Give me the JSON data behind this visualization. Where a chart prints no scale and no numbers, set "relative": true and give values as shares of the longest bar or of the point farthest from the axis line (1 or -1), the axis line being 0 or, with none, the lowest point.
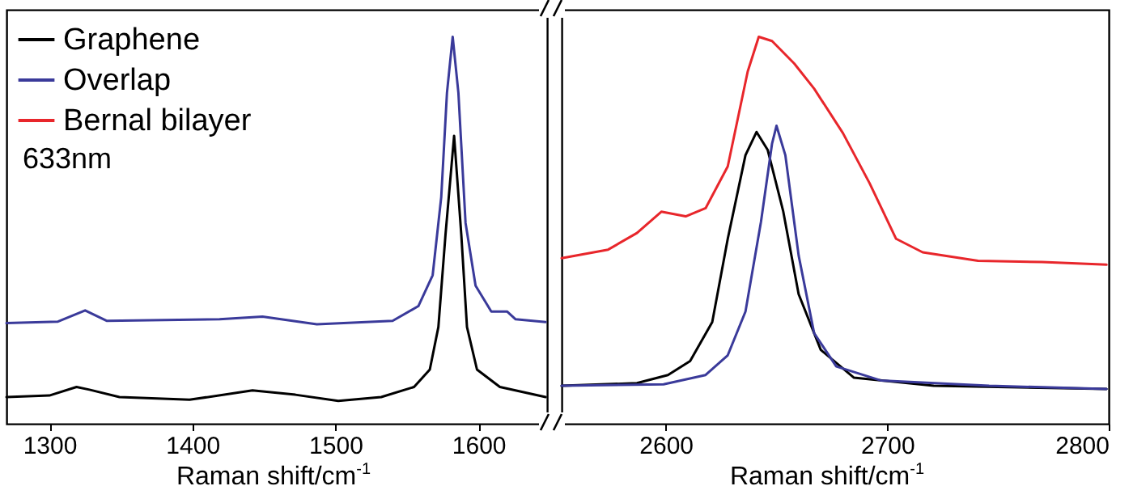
{
  "chart_data": [
    {
      "type": "line",
      "relative": true,
      "xlabel": "Raman shift/cm$^{-1}$",
      "xlim": [
        1270,
        1648
      ],
      "xticks": [
        1300,
        1400,
        1500,
        1600
      ],
      "legend": "top left",
      "annotations": [
        "633nm"
      ],
      "series": [
        {
          "name": "Graphene",
          "color": "#000000",
          "x": [
            1270,
            1300,
            1319,
            1328,
            1349,
            1398,
            1442,
            1472,
            1502,
            1532,
            1555,
            1566,
            1572,
            1577,
            1583,
            1588,
            1592,
            1599,
            1615,
            1647
          ],
          "values": [
            0.069,
            0.073,
            0.095,
            0.088,
            0.069,
            0.062,
            0.086,
            0.075,
            0.059,
            0.069,
            0.095,
            0.14,
            0.25,
            0.49,
            0.744,
            0.49,
            0.25,
            0.14,
            0.095,
            0.069
          ]
        },
        {
          "name": "Overlap",
          "color": "#3a3a9a",
          "x": [
            1270,
            1306,
            1325,
            1340,
            1419,
            1449,
            1487,
            1540,
            1558,
            1568,
            1574,
            1578,
            1582,
            1586,
            1591,
            1598,
            1609,
            1620,
            1626,
            1647
          ],
          "values": [
            0.26,
            0.264,
            0.293,
            0.266,
            0.27,
            0.277,
            0.257,
            0.266,
            0.304,
            0.384,
            0.586,
            0.855,
            1.0,
            0.855,
            0.519,
            0.357,
            0.29,
            0.29,
            0.27,
            0.263
          ]
        }
      ]
    },
    {
      "type": "line",
      "relative": true,
      "xlabel": "Raman shift/cm$^{-1}$",
      "xlim": [
        2553,
        2800
      ],
      "xticks": [
        2600,
        2700,
        2800
      ],
      "series": [
        {
          "name": "Graphene",
          "color": "#000000",
          "x": [
            2553,
            2587,
            2601,
            2611,
            2621,
            2628,
            2636,
            2641,
            2646,
            2653,
            2660,
            2670,
            2685,
            2721,
            2799
          ],
          "values": [
            0.098,
            0.105,
            0.126,
            0.162,
            0.263,
            0.478,
            0.694,
            0.754,
            0.708,
            0.55,
            0.335,
            0.191,
            0.119,
            0.098,
            0.09
          ]
        },
        {
          "name": "Overlap",
          "color": "#3a3a9a",
          "x": [
            2553,
            2599,
            2618,
            2628,
            2636,
            2643,
            2648,
            2650,
            2654,
            2660,
            2667,
            2677,
            2697,
            2746,
            2799
          ],
          "values": [
            0.098,
            0.102,
            0.126,
            0.177,
            0.29,
            0.522,
            0.724,
            0.77,
            0.694,
            0.435,
            0.234,
            0.148,
            0.112,
            0.098,
            0.09
          ]
        },
        {
          "name": "Bernal bilayer",
          "color": "#e8262b",
          "x": [
            2553,
            2574,
            2587,
            2598,
            2609,
            2618,
            2628,
            2637,
            2642,
            2648,
            2658,
            2667,
            2680,
            2692,
            2704,
            2716,
            2741,
            2770,
            2799
          ],
          "values": [
            0.428,
            0.45,
            0.493,
            0.548,
            0.536,
            0.557,
            0.665,
            0.91,
            1.0,
            0.989,
            0.931,
            0.866,
            0.751,
            0.622,
            0.478,
            0.443,
            0.421,
            0.418,
            0.411
          ]
        }
      ]
    }
  ]
}
